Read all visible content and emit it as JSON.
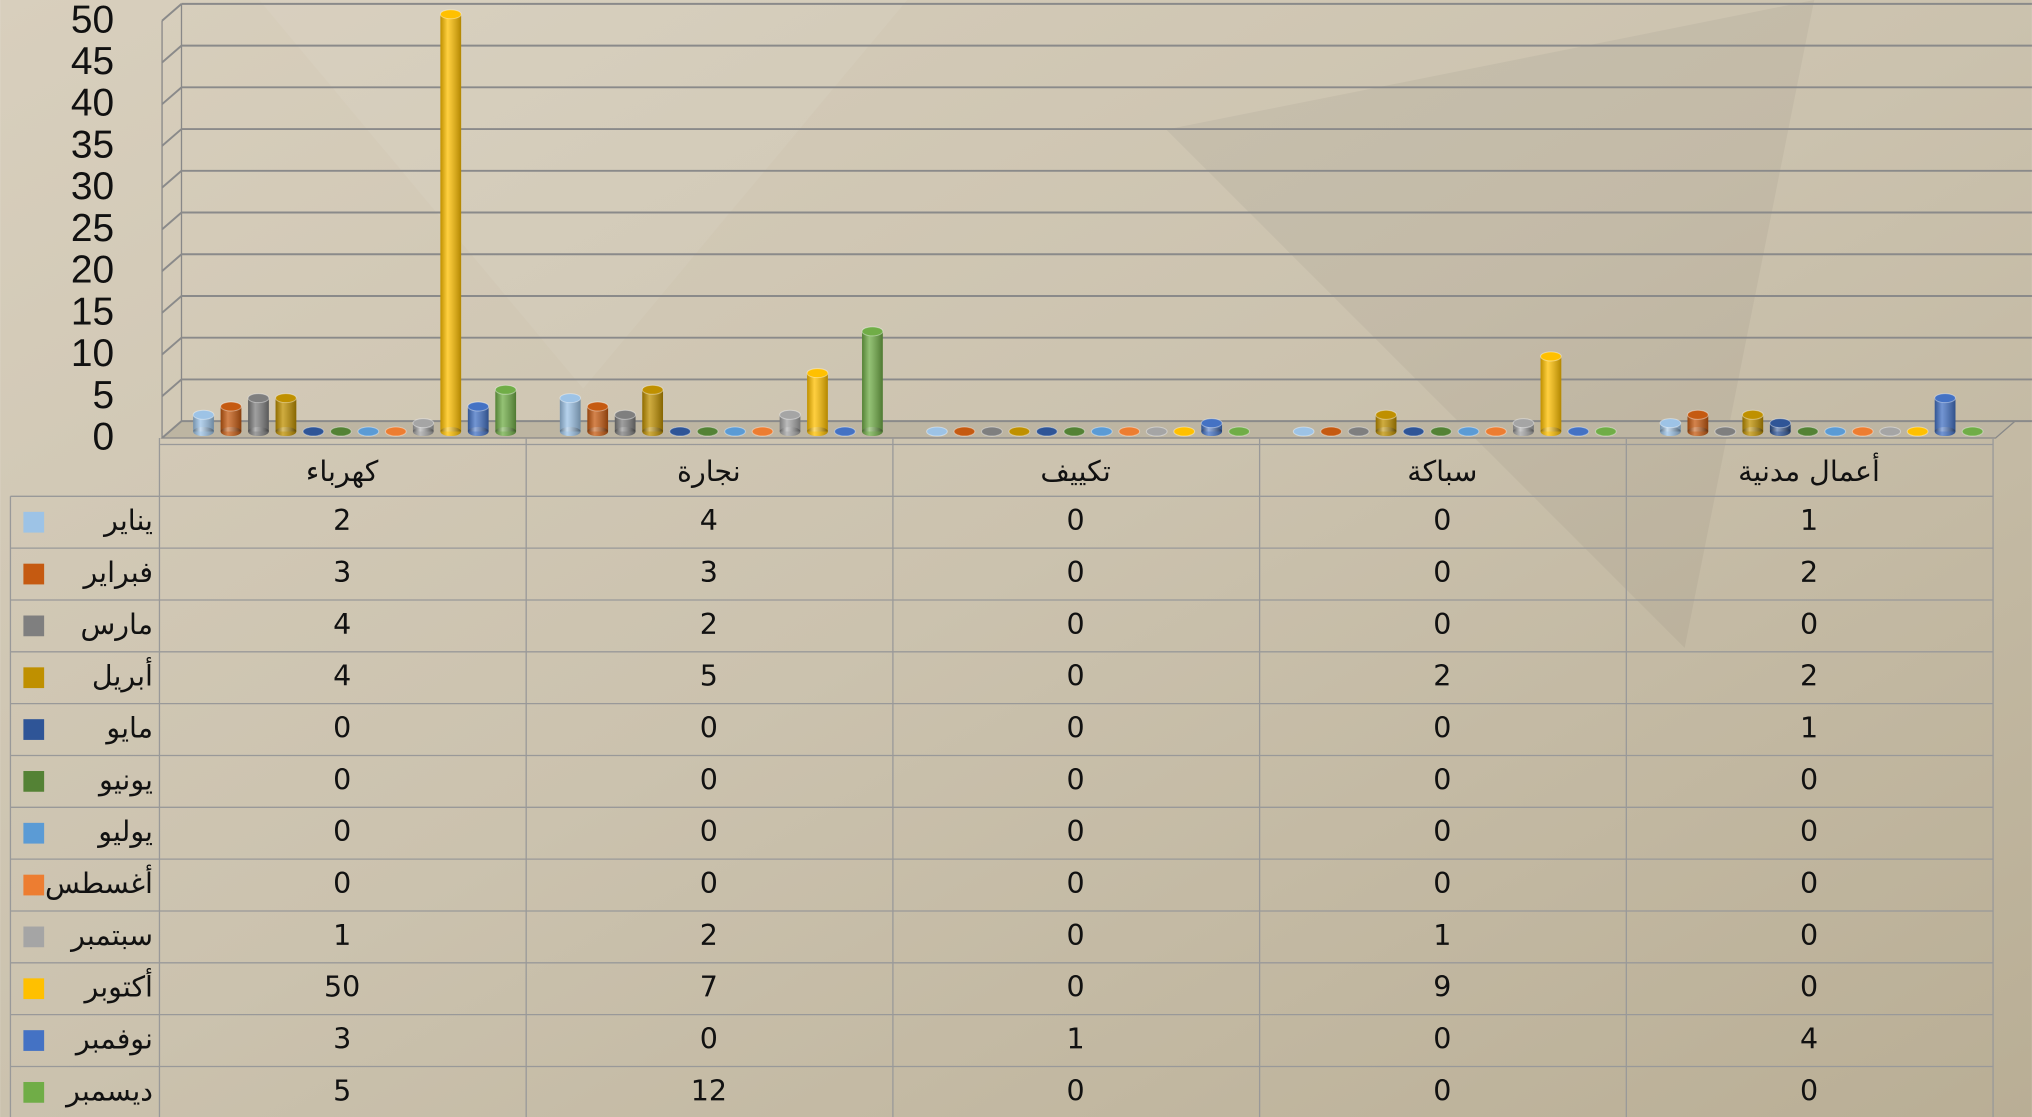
{
  "chart_data": {
    "type": "bar",
    "categories": [
      "كهرباء",
      "نجارة",
      "تكييف",
      "سباكة",
      "أعمال مدنية"
    ],
    "series": [
      {
        "name": "يناير",
        "color": "#9dc3e6",
        "values": [
          2,
          4,
          0,
          0,
          1
        ]
      },
      {
        "name": "فبراير",
        "color": "#c55a11",
        "values": [
          3,
          3,
          0,
          0,
          2
        ]
      },
      {
        "name": "مارس",
        "color": "#7f7f7f",
        "values": [
          4,
          2,
          0,
          0,
          0
        ]
      },
      {
        "name": "أبريل",
        "color": "#bf9000",
        "values": [
          4,
          5,
          0,
          2,
          2
        ]
      },
      {
        "name": "مايو",
        "color": "#2f5597",
        "values": [
          0,
          0,
          0,
          0,
          1
        ]
      },
      {
        "name": "يونيو",
        "color": "#548235",
        "values": [
          0,
          0,
          0,
          0,
          0
        ]
      },
      {
        "name": "يوليو",
        "color": "#5b9bd5",
        "values": [
          0,
          0,
          0,
          0,
          0
        ]
      },
      {
        "name": "أغسطس",
        "color": "#ed7d31",
        "values": [
          0,
          0,
          0,
          0,
          0
        ]
      },
      {
        "name": "سبتمبر",
        "color": "#a5a5a5",
        "values": [
          1,
          2,
          0,
          1,
          0
        ]
      },
      {
        "name": "أكتوبر",
        "color": "#ffc000",
        "values": [
          50,
          7,
          0,
          9,
          0
        ]
      },
      {
        "name": "نوفمبر",
        "color": "#4472c4",
        "values": [
          3,
          0,
          1,
          0,
          4
        ]
      },
      {
        "name": "ديسمبر",
        "color": "#70ad47",
        "values": [
          5,
          12,
          0,
          0,
          0
        ]
      }
    ],
    "ylim": [
      0,
      50
    ],
    "yticks": [
      0,
      5,
      10,
      15,
      20,
      25,
      30,
      35,
      40,
      45,
      50
    ],
    "grid": true
  }
}
